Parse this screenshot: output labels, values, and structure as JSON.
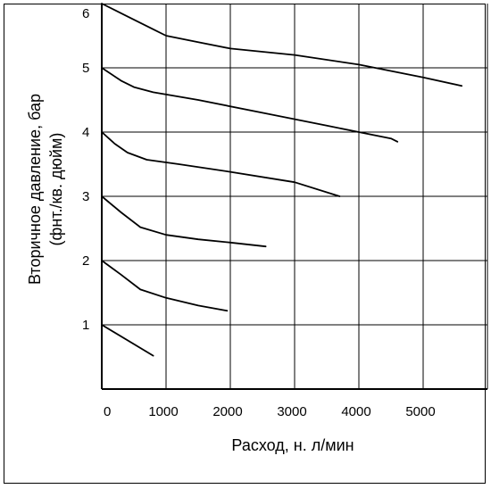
{
  "chart_data": {
    "type": "line",
    "title": "",
    "xlabel": "Расход, н. л/мин",
    "ylabel_line1": "Вторичное давление, бар",
    "ylabel_line2": "(фнт./кв. дюйм)",
    "xlim": [
      0,
      6000
    ],
    "ylim": [
      0,
      6
    ],
    "x_ticks": [
      "0",
      "1000",
      "2000",
      "3000",
      "4000",
      "5000"
    ],
    "x_tick_values": [
      0,
      1000,
      2000,
      3000,
      4000,
      5000
    ],
    "y_ticks": [
      "1",
      "2",
      "3",
      "4",
      "5",
      "6"
    ],
    "y_tick_values": [
      1,
      2,
      3,
      4,
      5,
      6
    ],
    "grid": true,
    "line_color": "#000000",
    "series": [
      {
        "points": [
          [
            0,
            6.0
          ],
          [
            400,
            5.8
          ],
          [
            800,
            5.6
          ],
          [
            1000,
            5.5
          ],
          [
            1500,
            5.4
          ],
          [
            2000,
            5.3
          ],
          [
            3000,
            5.2
          ],
          [
            4000,
            5.05
          ],
          [
            5000,
            4.85
          ],
          [
            5600,
            4.72
          ]
        ]
      },
      {
        "points": [
          [
            0,
            5.0
          ],
          [
            300,
            4.8
          ],
          [
            500,
            4.7
          ],
          [
            800,
            4.62
          ],
          [
            1500,
            4.5
          ],
          [
            2500,
            4.3
          ],
          [
            3500,
            4.1
          ],
          [
            4500,
            3.9
          ],
          [
            4600,
            3.85
          ]
        ]
      },
      {
        "points": [
          [
            0,
            4.0
          ],
          [
            200,
            3.82
          ],
          [
            400,
            3.68
          ],
          [
            700,
            3.57
          ],
          [
            1200,
            3.5
          ],
          [
            2000,
            3.38
          ],
          [
            3000,
            3.22
          ],
          [
            3700,
            3.0
          ]
        ]
      },
      {
        "points": [
          [
            0,
            3.0
          ],
          [
            300,
            2.75
          ],
          [
            600,
            2.52
          ],
          [
            1000,
            2.4
          ],
          [
            1500,
            2.33
          ],
          [
            2000,
            2.28
          ],
          [
            2550,
            2.22
          ]
        ]
      },
      {
        "points": [
          [
            0,
            2.0
          ],
          [
            300,
            1.78
          ],
          [
            600,
            1.55
          ],
          [
            1000,
            1.42
          ],
          [
            1500,
            1.3
          ],
          [
            1950,
            1.22
          ]
        ]
      },
      {
        "points": [
          [
            0,
            1.0
          ],
          [
            800,
            0.52
          ]
        ]
      }
    ]
  }
}
